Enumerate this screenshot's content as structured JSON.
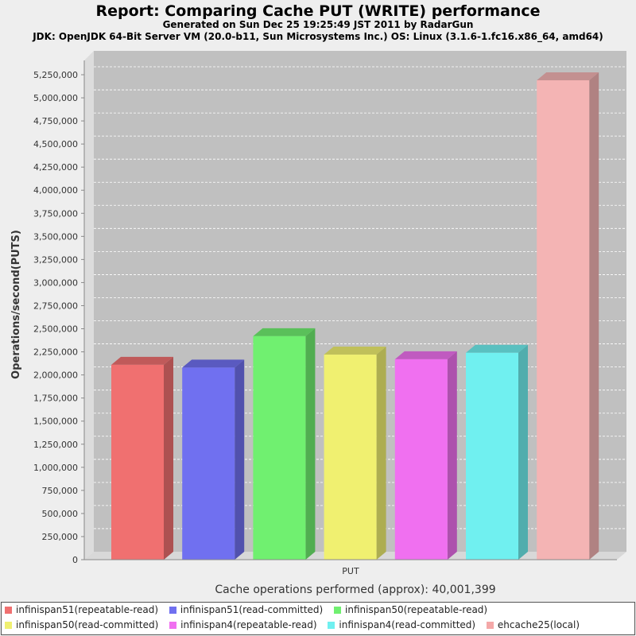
{
  "chart_data": {
    "type": "bar",
    "title": "Report: Comparing Cache PUT (WRITE) performance",
    "subtitle_lines": [
      "Generated on Sun Dec 25 19:25:49 JST 2011 by RadarGun",
      "JDK: OpenJDK 64-Bit Server VM (20.0-b11, Sun Microsystems Inc.) OS: Linux (3.1.6-1.fc16.x86_64, amd64)"
    ],
    "categories": [
      "PUT"
    ],
    "xlabel": "Cache operations performed (approx): 40,001,399",
    "ylabel": "Operations/second(PUTS)",
    "ylim": [
      0,
      5250000
    ],
    "yticks": [
      0,
      250000,
      500000,
      750000,
      1000000,
      1250000,
      1500000,
      1750000,
      2000000,
      2250000,
      2500000,
      2750000,
      3000000,
      3250000,
      3500000,
      3750000,
      4000000,
      4250000,
      4500000,
      4750000,
      5000000,
      5250000
    ],
    "ytick_labels": [
      "0",
      "250,000",
      "500,000",
      "750,000",
      "1,000,000",
      "1,250,000",
      "1,500,000",
      "1,750,000",
      "2,000,000",
      "2,250,000",
      "2,500,000",
      "2,750,000",
      "3,000,000",
      "3,250,000",
      "3,500,000",
      "3,750,000",
      "4,000,000",
      "4,250,000",
      "4,500,000",
      "4,750,000",
      "5,000,000",
      "5,250,000"
    ],
    "grid": true,
    "legend_position": "bottom",
    "series": [
      {
        "name": "infinispan51(repeatable-read)",
        "values": [
          2110000
        ],
        "color": "#f07070"
      },
      {
        "name": "infinispan51(read-committed)",
        "values": [
          2080000
        ],
        "color": "#7070f0"
      },
      {
        "name": "infinispan50(repeatable-read)",
        "values": [
          2420000
        ],
        "color": "#70f070"
      },
      {
        "name": "infinispan50(read-committed)",
        "values": [
          2220000
        ],
        "color": "#f0f070"
      },
      {
        "name": "infinispan4(repeatable-read)",
        "values": [
          2170000
        ],
        "color": "#f070f0"
      },
      {
        "name": "infinispan4(read-committed)",
        "values": [
          2240000
        ],
        "color": "#70f0f0"
      },
      {
        "name": "ehcache25(local)",
        "values": [
          5190000
        ],
        "color": "#f4b4b4"
      }
    ]
  }
}
